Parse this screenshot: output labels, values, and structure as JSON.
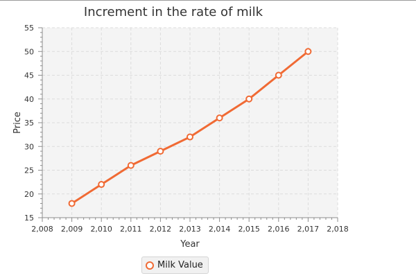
{
  "chart_data": {
    "type": "line",
    "title": "Increment in the rate of milk",
    "xlabel": "Year",
    "ylabel": "Price",
    "xlim": [
      2008,
      2018
    ],
    "ylim": [
      15,
      55
    ],
    "x_ticks": [
      "2,008",
      "2,009",
      "2,010",
      "2,011",
      "2,012",
      "2,013",
      "2,014",
      "2,015",
      "2,016",
      "2,017",
      "2,018"
    ],
    "y_ticks": [
      "15",
      "20",
      "25",
      "30",
      "35",
      "40",
      "45",
      "50",
      "55"
    ],
    "grid": true,
    "legend_position": "bottom",
    "series": [
      {
        "name": "Milk Value",
        "color": "#f06a34",
        "x": [
          2009,
          2010,
          2011,
          2012,
          2013,
          2014,
          2015,
          2016,
          2017
        ],
        "values": [
          18,
          22,
          26,
          29,
          32,
          36,
          40,
          45,
          50
        ]
      }
    ]
  }
}
